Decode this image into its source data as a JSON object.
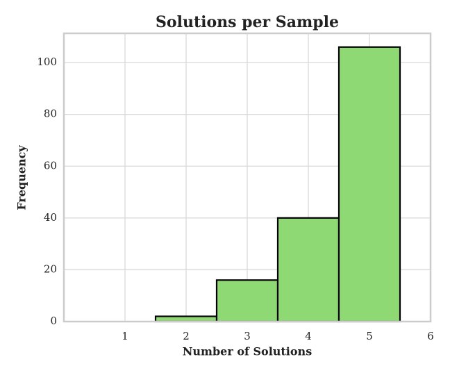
{
  "chart_data": {
    "type": "histogram",
    "title": "Solutions per Sample",
    "x_label": "Number of Solutions",
    "y_label": "Frequency",
    "bins": [
      0.5,
      1.5,
      2.5,
      3.5,
      4.5,
      5.5
    ],
    "values": [
      0,
      2,
      16,
      40,
      106
    ],
    "color": "#8fd974",
    "edge_color": "#000000",
    "xlim": [
      0,
      6
    ],
    "xticks": [
      1,
      2,
      3,
      4,
      5,
      6
    ],
    "ylim": [
      0,
      111.3
    ],
    "yticks": [
      0,
      20,
      40,
      60,
      80,
      100
    ],
    "grid": true
  }
}
